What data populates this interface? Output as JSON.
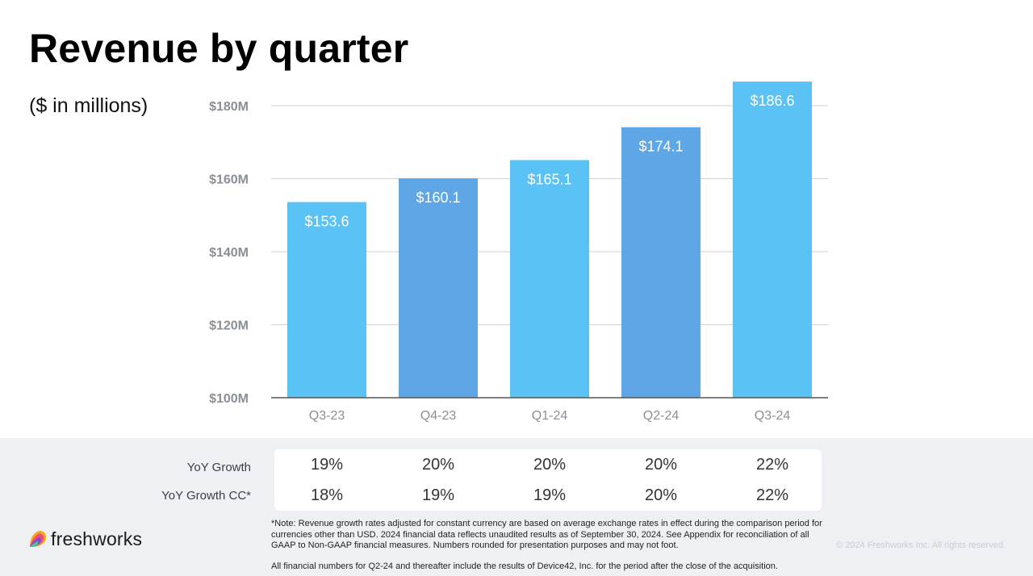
{
  "title": "Revenue by quarter",
  "subtitle": "($ in millions)",
  "chart_data": {
    "type": "bar",
    "categories": [
      "Q3-23",
      "Q4-23",
      "Q1-24",
      "Q2-24",
      "Q3-24"
    ],
    "values": [
      153.6,
      160.1,
      165.1,
      174.1,
      186.6
    ],
    "value_labels": [
      "$153.6",
      "$160.1",
      "$165.1",
      "$174.1",
      "$186.6"
    ],
    "y_ticks": [
      100,
      120,
      140,
      160,
      180
    ],
    "y_tick_labels": [
      "$100M",
      "$120M",
      "$140M",
      "$160M",
      "$180M"
    ],
    "ylim": [
      100,
      180
    ],
    "bar_colors": [
      "#5bc2f5",
      "#5ea6e6",
      "#5bc2f5",
      "#5ea6e6",
      "#5bc2f5"
    ],
    "grid": true,
    "xlabel": "",
    "ylabel": ""
  },
  "growth": {
    "rows": [
      {
        "label": "YoY Growth",
        "values": [
          "19%",
          "20%",
          "20%",
          "20%",
          "22%"
        ]
      },
      {
        "label": "YoY Growth CC*",
        "values": [
          "18%",
          "19%",
          "19%",
          "20%",
          "22%"
        ]
      }
    ]
  },
  "footer": {
    "note": "*Note: Revenue growth rates adjusted for constant currency are based on average exchange rates in effect during the comparison period for currencies other than USD. 2024 financial data reflects unaudited results as of September 30, 2024. See Appendix for reconciliation of all GAAP to Non-GAAP financial measures. Numbers rounded for presentation purposes and may not foot.",
    "note2": "All financial numbers for Q2-24 and thereafter include the results of Device42, Inc. for the period after the close of the acquisition.",
    "copyright": "© 2024 Freshworks Inc. All rights reserved.",
    "logo_text": "freshworks"
  },
  "colors": {
    "bar_light": "#5bc2f5",
    "bar_dark": "#5ea6e6",
    "grid": "#d0d0d0",
    "axis_text": "#8a8f96"
  }
}
